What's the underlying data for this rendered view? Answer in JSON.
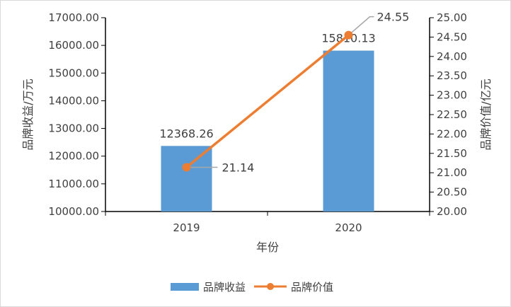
{
  "chart_data": {
    "type": "bar",
    "categories": [
      "2019",
      "2020"
    ],
    "xlabel": "年份",
    "series": [
      {
        "name": "品牌收益",
        "type": "bar",
        "axis": "left",
        "color": "#5b9bd5",
        "values": [
          12368.26,
          15810.13
        ],
        "labels": [
          "12368.26",
          "15810.13"
        ]
      },
      {
        "name": "品牌价值",
        "type": "line",
        "axis": "right",
        "color": "#ed7d31",
        "values": [
          21.14,
          24.55
        ],
        "labels": [
          "21.14",
          "24.55"
        ]
      }
    ],
    "y_left": {
      "label": "品牌收益/万元",
      "lim": [
        10000,
        17000
      ],
      "ticks": [
        "10000.00",
        "11000.00",
        "12000.00",
        "13000.00",
        "14000.00",
        "15000.00",
        "16000.00",
        "17000.00"
      ]
    },
    "y_right": {
      "label": "品牌价值/亿元",
      "lim": [
        20,
        25
      ],
      "ticks": [
        "20.00",
        "20.50",
        "21.00",
        "21.50",
        "22.00",
        "22.50",
        "23.00",
        "23.50",
        "24.00",
        "24.50",
        "25.00"
      ]
    },
    "grid": false,
    "legend": "bottom"
  }
}
